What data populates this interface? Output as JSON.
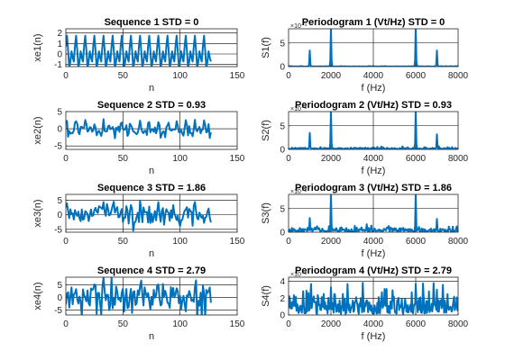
{
  "colors": {
    "line": "#0072BD",
    "grid": "#000000",
    "axis": "#262626"
  },
  "chart_data": [
    {
      "type": "line",
      "title": "Sequence 1 STD = 0",
      "xlabel": "n",
      "ylabel": "xe1(n)",
      "xlim": [
        0,
        150
      ],
      "ylim": [
        -1.2,
        2.4
      ],
      "xticks": [
        "0",
        "50",
        "100",
        "150"
      ],
      "xtick_values": [
        0,
        50,
        100,
        150
      ],
      "yticks": [
        "-1",
        "0",
        "1",
        "2"
      ],
      "ytick_values": [
        -1,
        0,
        1,
        2
      ],
      "grid": true,
      "series": [
        {
          "generator": "sequence",
          "std": 0,
          "length": 128
        }
      ]
    },
    {
      "type": "line",
      "title": "Periodogram 1 (Vt/Hz) STD = 0",
      "xlabel": "f (Hz)",
      "ylabel": "S1(f)",
      "exponent_label": "×10⁻³",
      "xlim": [
        0,
        8000
      ],
      "ylim": [
        0,
        8
      ],
      "xticks": [
        "0",
        "2000",
        "4000",
        "6000",
        "8000"
      ],
      "xtick_values": [
        0,
        2000,
        4000,
        6000,
        8000
      ],
      "yticks": [
        "0",
        "5"
      ],
      "ytick_values": [
        0,
        5
      ],
      "grid": true,
      "peaks": [
        [
          1000,
          3.4
        ],
        [
          2000,
          8.5
        ],
        [
          6000,
          8.5
        ],
        [
          7000,
          3.4
        ]
      ],
      "series": [
        {
          "generator": "periodogram",
          "std": 0,
          "noise_floor": 0.05
        }
      ]
    },
    {
      "type": "line",
      "title": "Sequence 2 STD = 0.93",
      "xlabel": "n",
      "ylabel": "xe2(n)",
      "xlim": [
        0,
        150
      ],
      "ylim": [
        -6,
        5
      ],
      "xticks": [
        "0",
        "50",
        "100",
        "150"
      ],
      "xtick_values": [
        0,
        50,
        100,
        150
      ],
      "yticks": [
        "-5",
        "0",
        "5"
      ],
      "ytick_values": [
        -5,
        0,
        5
      ],
      "grid": true,
      "series": [
        {
          "generator": "sequence",
          "std": 0.93,
          "length": 128
        }
      ]
    },
    {
      "type": "line",
      "title": "Periodogram 2 (Vt/Hz) STD = 0.93",
      "xlabel": "f (Hz)",
      "ylabel": "S2(f)",
      "exponent_label": "×10⁻³",
      "xlim": [
        0,
        8000
      ],
      "ylim": [
        0,
        8
      ],
      "xticks": [
        "0",
        "2000",
        "4000",
        "6000",
        "8000"
      ],
      "xtick_values": [
        0,
        2000,
        4000,
        6000,
        8000
      ],
      "yticks": [
        "0",
        "5"
      ],
      "ytick_values": [
        0,
        5
      ],
      "grid": true,
      "peaks": [
        [
          1000,
          3.5
        ],
        [
          2000,
          8.5
        ],
        [
          6000,
          8.5
        ],
        [
          7000,
          3.2
        ]
      ],
      "series": [
        {
          "generator": "periodogram",
          "std": 0.93,
          "noise_floor": 0.25
        }
      ]
    },
    {
      "type": "line",
      "title": "Sequence 3 STD = 1.86",
      "xlabel": "n",
      "ylabel": "xe3(n)",
      "xlim": [
        0,
        150
      ],
      "ylim": [
        -6,
        7
      ],
      "xticks": [
        "0",
        "50",
        "100",
        "150"
      ],
      "xtick_values": [
        0,
        50,
        100,
        150
      ],
      "yticks": [
        "-5",
        "0",
        "5"
      ],
      "ytick_values": [
        -5,
        0,
        5
      ],
      "grid": true,
      "series": [
        {
          "generator": "sequence",
          "std": 1.86,
          "length": 128
        }
      ]
    },
    {
      "type": "line",
      "title": "Periodogram 3 (Vt/Hz) STD = 1.86",
      "xlabel": "f (Hz)",
      "ylabel": "S3(f)",
      "exponent_label": "×10⁻³",
      "xlim": [
        0,
        8000
      ],
      "ylim": [
        0,
        8
      ],
      "xticks": [
        "0",
        "2000",
        "4000",
        "6000",
        "8000"
      ],
      "xtick_values": [
        0,
        2000,
        4000,
        6000,
        8000
      ],
      "yticks": [
        "0",
        "5"
      ],
      "ytick_values": [
        0,
        5
      ],
      "grid": true,
      "peaks": [
        [
          1000,
          3.0
        ],
        [
          2000,
          8.3
        ],
        [
          6000,
          8.3
        ],
        [
          7000,
          2.8
        ]
      ],
      "series": [
        {
          "generator": "periodogram",
          "std": 1.86,
          "noise_floor": 0.6
        }
      ]
    },
    {
      "type": "line",
      "title": "Sequence 4 STD = 2.79",
      "xlabel": "n",
      "ylabel": "xe4(n)",
      "xlim": [
        0,
        150
      ],
      "ylim": [
        -7,
        8
      ],
      "xticks": [
        "0",
        "50",
        "100",
        "150"
      ],
      "xtick_values": [
        0,
        50,
        100,
        150
      ],
      "yticks": [
        "-5",
        "0",
        "5"
      ],
      "ytick_values": [
        -5,
        0,
        5
      ],
      "grid": true,
      "series": [
        {
          "generator": "sequence",
          "std": 2.79,
          "length": 128
        }
      ]
    },
    {
      "type": "line",
      "title": "Periodogram 4 (Vt/Hz) STD = 2.79",
      "xlabel": "f (Hz)",
      "ylabel": "S4(f)",
      "exponent_label": "×10⁻³",
      "xlim": [
        0,
        8000
      ],
      "ylim": [
        0,
        4.5
      ],
      "xticks": [
        "0",
        "2000",
        "4000",
        "6000",
        "8000"
      ],
      "xtick_values": [
        0,
        2000,
        4000,
        6000,
        8000
      ],
      "yticks": [
        "0",
        "2",
        "4"
      ],
      "ytick_values": [
        0,
        2,
        4
      ],
      "grid": true,
      "peaks": [
        [
          2000,
          3.3
        ],
        [
          6000,
          3.7
        ]
      ],
      "series": [
        {
          "generator": "periodogram",
          "std": 2.79,
          "noise_floor": 1.1
        }
      ]
    }
  ]
}
